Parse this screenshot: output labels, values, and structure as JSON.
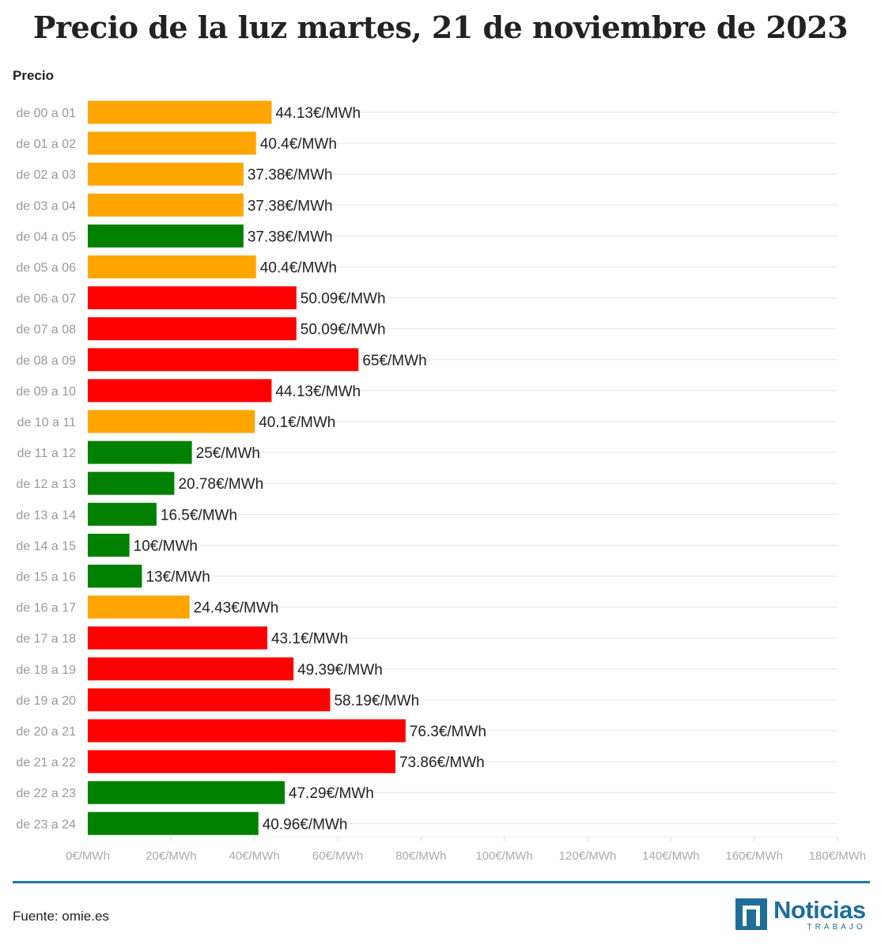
{
  "header": {
    "title": "Precio de la luz martes, 21 de noviembre de 2023"
  },
  "footer": {
    "source": "Fuente: omie.es",
    "logo_name": "Noticias",
    "logo_sub": "TRABAJO"
  },
  "colors": {
    "low": "#008000",
    "mid": "#ffa500",
    "high": "#ff0000",
    "divider": "#1f7aa8",
    "brand": "#1e6e99"
  },
  "chart_data": {
    "type": "bar",
    "orientation": "horizontal",
    "title": "Precio de la luz martes, 21 de noviembre de 2023",
    "ylabel": "Precio",
    "xlabel": "",
    "xlim": [
      0,
      180
    ],
    "xticks": [
      "0€/MWh",
      "20€/MWh",
      "40€/MWh",
      "60€/MWh",
      "80€/MWh",
      "100€/MWh",
      "120€/MWh",
      "140€/MWh",
      "160€/MWh",
      "180€/MWh"
    ],
    "grid": true,
    "categories": [
      "de 00 a 01",
      "de 01 a 02",
      "de 02 a 03",
      "de 03 a 04",
      "de 04 a 05",
      "de 05 a 06",
      "de 06 a 07",
      "de 07 a 08",
      "de 08 a 09",
      "de 09 a 10",
      "de 10 a 11",
      "de 11 a 12",
      "de 12 a 13",
      "de 13 a 14",
      "de 14 a 15",
      "de 15 a 16",
      "de 16 a 17",
      "de 17 a 18",
      "de 18 a 19",
      "de 19 a 20",
      "de 20 a 21",
      "de 21 a 22",
      "de 22 a 23",
      "de 23 a 24"
    ],
    "values": [
      44.13,
      40.4,
      37.38,
      37.38,
      37.38,
      40.4,
      50.09,
      50.09,
      65,
      44.13,
      40.1,
      25,
      20.78,
      16.5,
      10,
      13,
      24.43,
      43.1,
      49.39,
      58.19,
      76.3,
      73.86,
      47.29,
      40.96
    ],
    "value_labels": [
      "44.13€/MWh",
      "40.4€/MWh",
      "37.38€/MWh",
      "37.38€/MWh",
      "37.38€/MWh",
      "40.4€/MWh",
      "50.09€/MWh",
      "50.09€/MWh",
      "65€/MWh",
      "44.13€/MWh",
      "40.1€/MWh",
      "25€/MWh",
      "20.78€/MWh",
      "16.5€/MWh",
      "10€/MWh",
      "13€/MWh",
      "24.43€/MWh",
      "43.1€/MWh",
      "49.39€/MWh",
      "58.19€/MWh",
      "76.3€/MWh",
      "73.86€/MWh",
      "47.29€/MWh",
      "40.96€/MWh"
    ],
    "levels": [
      "mid",
      "mid",
      "mid",
      "mid",
      "low",
      "mid",
      "high",
      "high",
      "high",
      "high",
      "mid",
      "low",
      "low",
      "low",
      "low",
      "low",
      "mid",
      "high",
      "high",
      "high",
      "high",
      "high",
      "low",
      "low"
    ]
  }
}
